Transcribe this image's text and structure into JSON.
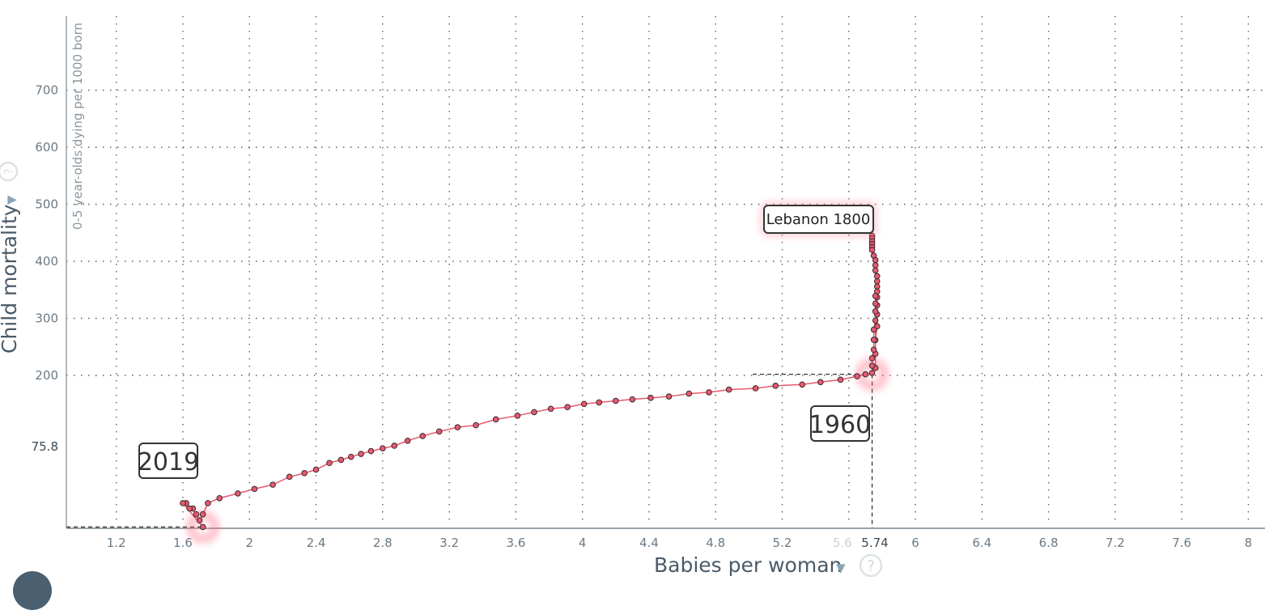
{
  "chart_data": {
    "type": "line",
    "xlabel": "Babies per woman",
    "ylabel": "Child mortality",
    "ysublabel": "0-5 year-olds dying per 1000 born",
    "xlim": [
      0.9,
      8.1
    ],
    "ylim": [
      -20,
      880
    ],
    "x_ticks": [
      1.2,
      1.6,
      2,
      2.4,
      2.8,
      3.2,
      3.6,
      4,
      4.4,
      4.8,
      5.2,
      5.6,
      6,
      6.4,
      6.8,
      7.2,
      7.6,
      8
    ],
    "y_ticks": [
      200,
      300,
      400,
      500,
      600,
      700
    ],
    "highlight_x": "5.74",
    "highlight_y": "75.8",
    "annotations": {
      "country_label": "Lebanon 1800",
      "year_1960": "1960",
      "year_2019": "2019"
    },
    "series": [
      {
        "name": "Lebanon",
        "color": "#e65a6e",
        "points": [
          [
            5.74,
            445
          ],
          [
            5.74,
            440
          ],
          [
            5.74,
            435
          ],
          [
            5.74,
            430
          ],
          [
            5.74,
            425
          ],
          [
            5.74,
            420
          ],
          [
            5.75,
            410
          ],
          [
            5.76,
            402
          ],
          [
            5.76,
            393
          ],
          [
            5.76,
            384
          ],
          [
            5.77,
            374
          ],
          [
            5.77,
            365
          ],
          [
            5.77,
            356
          ],
          [
            5.77,
            347
          ],
          [
            5.77,
            337
          ],
          [
            5.77,
            323
          ],
          [
            5.77,
            307
          ],
          [
            5.77,
            286
          ],
          [
            5.76,
            262
          ],
          [
            5.76,
            238
          ],
          [
            5.76,
            213
          ],
          [
            5.76,
            195
          ],
          [
            5.76,
            178
          ],
          [
            5.76,
            162
          ],
          [
            5.76,
            145
          ],
          [
            5.75,
            130
          ],
          [
            5.75,
            115
          ],
          [
            5.75,
            102
          ],
          [
            5.74,
            92
          ],
          [
            5.74,
            84
          ],
          [
            5.74,
            77
          ],
          [
            5.7,
            75.8
          ],
          [
            5.65,
            74
          ],
          [
            5.55,
            71
          ],
          [
            5.43,
            69
          ],
          [
            5.32,
            67
          ],
          [
            5.16,
            66
          ],
          [
            5.04,
            64
          ],
          [
            4.88,
            63
          ],
          [
            4.76,
            61
          ],
          [
            4.64,
            60
          ],
          [
            4.52,
            58
          ],
          [
            4.41,
            57
          ],
          [
            4.3,
            56
          ],
          [
            4.2,
            55
          ],
          [
            4.1,
            54
          ],
          [
            4.01,
            53
          ],
          [
            3.91,
            51
          ],
          [
            3.81,
            50
          ],
          [
            3.71,
            48
          ],
          [
            3.61,
            46
          ],
          [
            3.48,
            44
          ],
          [
            3.36,
            41
          ],
          [
            3.25,
            40
          ],
          [
            3.14,
            38
          ],
          [
            3.04,
            36
          ],
          [
            2.95,
            34
          ],
          [
            2.87,
            32
          ],
          [
            2.8,
            31
          ],
          [
            2.73,
            30
          ],
          [
            2.67,
            29
          ],
          [
            2.61,
            28
          ],
          [
            2.55,
            27
          ],
          [
            2.48,
            26
          ],
          [
            2.4,
            24
          ],
          [
            2.33,
            23
          ],
          [
            2.24,
            22
          ],
          [
            2.14,
            20
          ],
          [
            2.03,
            19
          ],
          [
            1.93,
            18
          ],
          [
            1.82,
            17
          ],
          [
            1.75,
            16
          ],
          [
            1.72,
            14
          ],
          [
            1.7,
            13
          ],
          [
            1.68,
            14
          ],
          [
            1.66,
            15
          ],
          [
            1.64,
            15
          ],
          [
            1.62,
            16
          ],
          [
            1.6,
            16
          ],
          [
            1.72,
            12
          ]
        ]
      }
    ],
    "ref_lines": {
      "end_x": 1.72,
      "end_y": 12,
      "start_x": 5.74,
      "start_y": 75.8
    }
  }
}
